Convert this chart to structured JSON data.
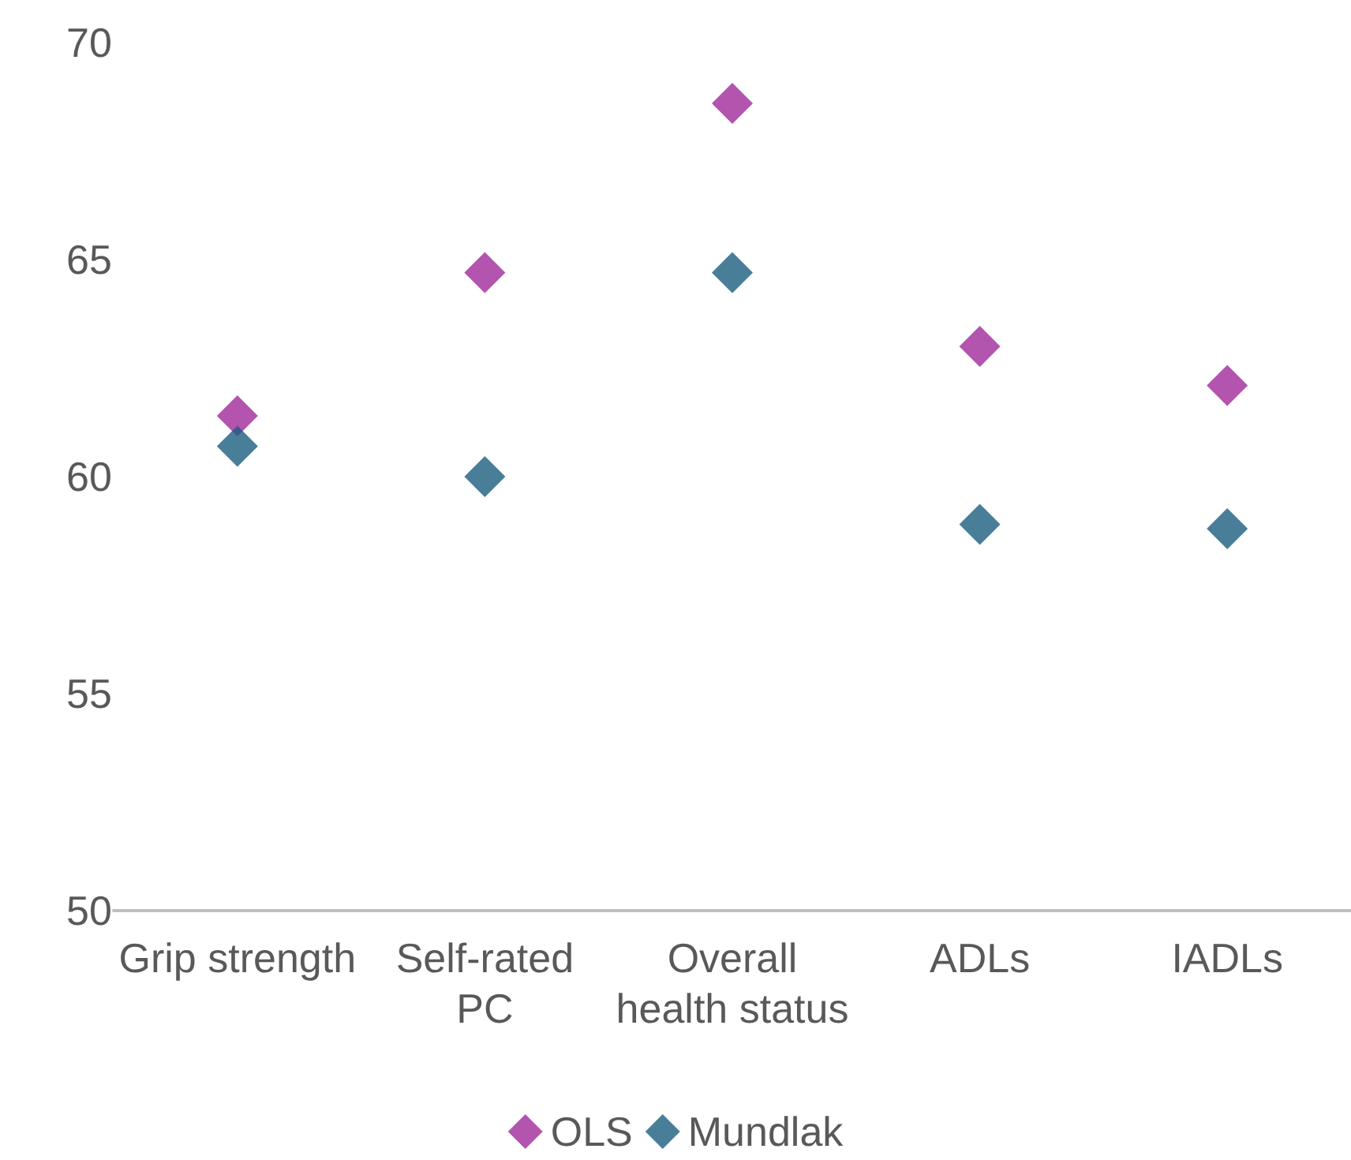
{
  "chart_data": {
    "type": "scatter",
    "categories": [
      "Grip strength",
      "Self-rated\nPC",
      "Overall\nhealth status",
      "ADLs",
      "IADLs"
    ],
    "series": [
      {
        "name": "OLS",
        "color": "#a0299b",
        "values": [
          61.4,
          64.7,
          68.6,
          63.0,
          62.1
        ]
      },
      {
        "name": "Mundlak",
        "color": "#1b5e7f",
        "values": [
          60.7,
          60.0,
          64.7,
          58.9,
          58.8
        ]
      }
    ],
    "ylim": [
      50,
      70
    ],
    "yticks": [
      50,
      55,
      60,
      65,
      70
    ],
    "grid": false,
    "legend": "bottom",
    "marker": "diamond"
  }
}
